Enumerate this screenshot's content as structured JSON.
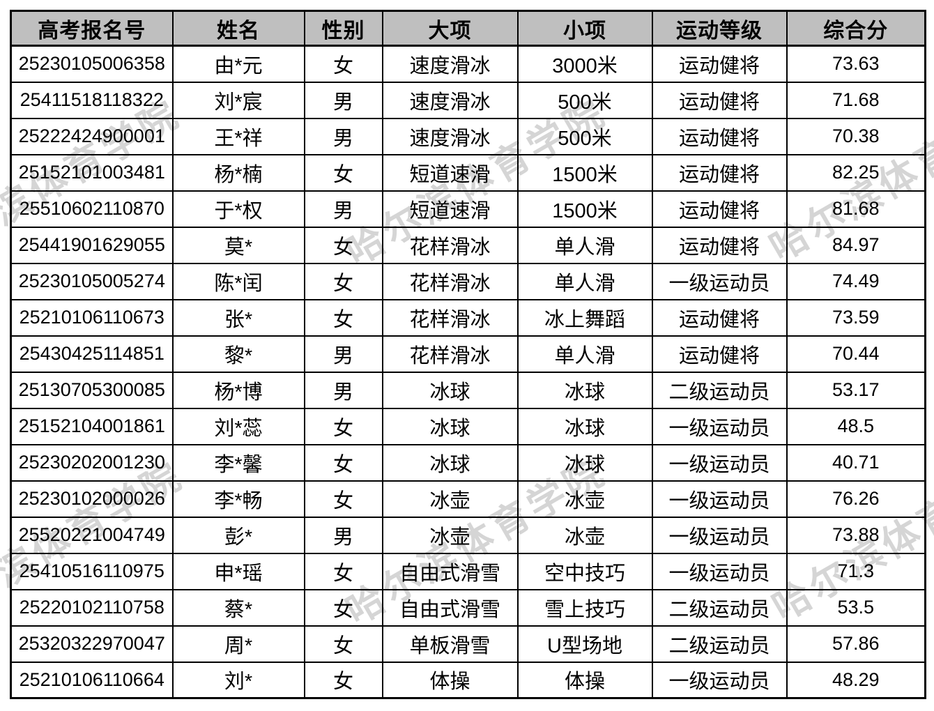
{
  "watermark": {
    "text": "哈尔滨体育学院",
    "color": "#d5d5d5"
  },
  "table": {
    "header_bg": "#bfbfbf",
    "columns": [
      "高考报名号",
      "姓名",
      "性别",
      "大项",
      "小项",
      "运动等级",
      "综合分"
    ],
    "rows": [
      [
        "25230105006358",
        "由*元",
        "女",
        "速度滑冰",
        "3000米",
        "运动健将",
        "73.63"
      ],
      [
        "25411518118322",
        "刘*宸",
        "男",
        "速度滑冰",
        "500米",
        "运动健将",
        "71.68"
      ],
      [
        "25222424900001",
        "王*祥",
        "男",
        "速度滑冰",
        "500米",
        "运动健将",
        "70.38"
      ],
      [
        "25152101003481",
        "杨*楠",
        "女",
        "短道速滑",
        "1500米",
        "运动健将",
        "82.25"
      ],
      [
        "25510602110870",
        "于*权",
        "男",
        "短道速滑",
        "1500米",
        "运动健将",
        "81.68"
      ],
      [
        "25441901629055",
        "莫*",
        "女",
        "花样滑冰",
        "单人滑",
        "运动健将",
        "84.97"
      ],
      [
        "25230105005274",
        "陈*闰",
        "女",
        "花样滑冰",
        "单人滑",
        "一级运动员",
        "74.49"
      ],
      [
        "25210106110673",
        "张*",
        "女",
        "花样滑冰",
        "冰上舞蹈",
        "运动健将",
        "73.59"
      ],
      [
        "25430425114851",
        "黎*",
        "男",
        "花样滑冰",
        "单人滑",
        "运动健将",
        "70.44"
      ],
      [
        "25130705300085",
        "杨*博",
        "男",
        "冰球",
        "冰球",
        "二级运动员",
        "53.17"
      ],
      [
        "25152104001861",
        "刘*蕊",
        "女",
        "冰球",
        "冰球",
        "一级运动员",
        "48.5"
      ],
      [
        "25230202001230",
        "李*馨",
        "女",
        "冰球",
        "冰球",
        "一级运动员",
        "40.71"
      ],
      [
        "25230102000026",
        "李*畅",
        "女",
        "冰壶",
        "冰壶",
        "一级运动员",
        "76.26"
      ],
      [
        "25520221004749",
        "彭*",
        "男",
        "冰壶",
        "冰壶",
        "一级运动员",
        "73.88"
      ],
      [
        "25410516110975",
        "申*瑶",
        "女",
        "自由式滑雪",
        "空中技巧",
        "一级运动员",
        "71.3"
      ],
      [
        "25220102110758",
        "蔡*",
        "女",
        "自由式滑雪",
        "雪上技巧",
        "二级运动员",
        "53.5"
      ],
      [
        "25320322970047",
        "周*",
        "女",
        "单板滑雪",
        "U型场地",
        "二级运动员",
        "57.86"
      ],
      [
        "25210106110664",
        "刘*",
        "女",
        "体操",
        "体操",
        "一级运动员",
        "48.29"
      ]
    ]
  }
}
